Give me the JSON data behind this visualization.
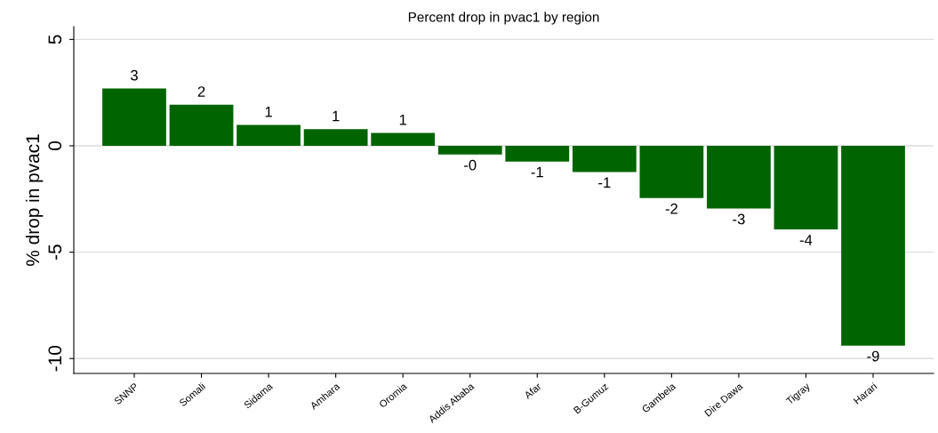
{
  "chart_data": {
    "type": "bar",
    "title": "Percent drop in pvac1 by region",
    "ylabel": "% drop in pvac1",
    "categories": [
      "SNNP",
      "Somali",
      "Sidama",
      "Amhara",
      "Oromia",
      "Addis Ababa",
      "Afar",
      "B-Gumuz",
      "Gambela",
      "Dire Dawa",
      "Tigray",
      "Harari"
    ],
    "values": [
      2.7,
      1.93,
      0.98,
      0.78,
      0.61,
      -0.41,
      -0.74,
      -1.23,
      -2.46,
      -2.95,
      -3.93,
      -9.39
    ],
    "value_labels": [
      "3",
      "2",
      "1",
      "1",
      "1",
      "-0",
      "-1",
      "-1",
      "-2",
      "-3",
      "-4",
      "-9"
    ],
    "color": "#006400",
    "ylim": [
      -10.7,
      5.6
    ],
    "yticks": [
      5,
      0,
      -5,
      -10
    ],
    "grid": "y",
    "legend": false
  }
}
